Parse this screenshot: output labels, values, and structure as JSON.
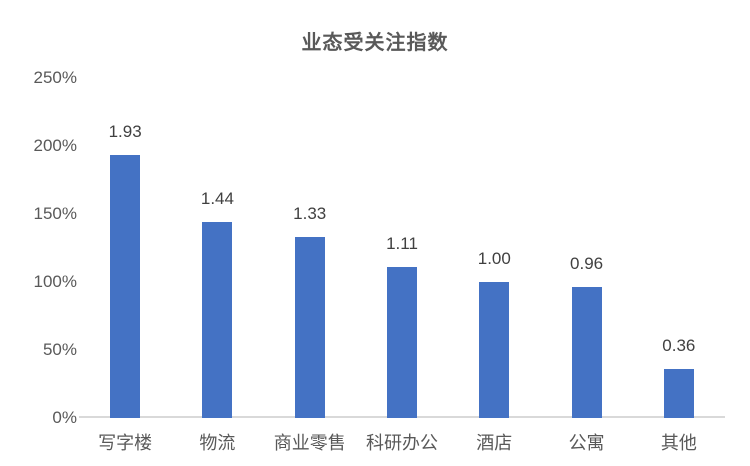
{
  "chart_data": {
    "type": "bar",
    "title": "业态受关注指数",
    "categories": [
      "写字楼",
      "物流",
      "商业零售",
      "科研办公",
      "酒店",
      "公寓",
      "其他"
    ],
    "values": [
      1.93,
      1.44,
      1.33,
      1.11,
      1.0,
      0.96,
      0.36
    ],
    "value_labels": [
      "1.93",
      "1.44",
      "1.33",
      "1.11",
      "1.00",
      "0.96",
      "0.36"
    ],
    "ytick_labels": [
      "0%",
      "50%",
      "100%",
      "150%",
      "200%",
      "250%"
    ],
    "ytick_values": [
      0,
      50,
      100,
      150,
      200,
      250
    ],
    "ylim_percent": [
      0,
      250
    ],
    "xlabel": "",
    "ylabel": "",
    "legend_position": "none",
    "grid": "off",
    "colors": {
      "bar": "#4472C4",
      "axis_line": "#D9D9D9",
      "title_text": "#595959",
      "axis_text": "#595959",
      "value_label_text": "#404040",
      "background": "#FFFFFF"
    }
  }
}
